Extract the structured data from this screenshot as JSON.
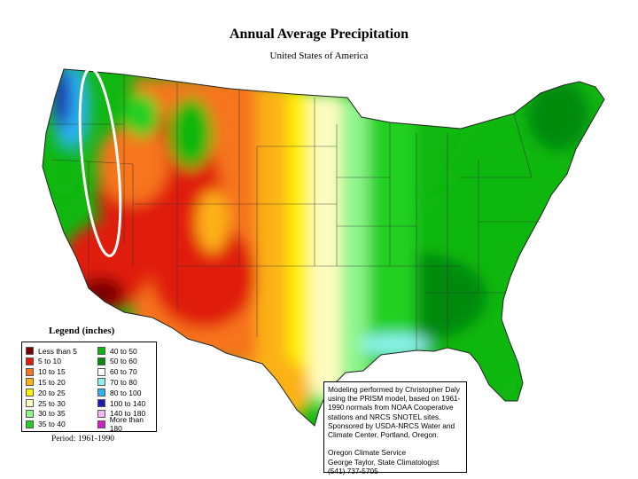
{
  "title": "Annual Average Precipitation",
  "subtitle": "United States of America",
  "legend": {
    "title": "Legend (inches)",
    "items": [
      {
        "label": "Less than 5",
        "color": "#7a0000"
      },
      {
        "label": "5 to 10",
        "color": "#e01b0c"
      },
      {
        "label": "10 to 15",
        "color": "#f7751c"
      },
      {
        "label": "15 to 20",
        "color": "#fcb214"
      },
      {
        "label": "20 to 25",
        "color": "#fff200"
      },
      {
        "label": "25 to 30",
        "color": "#fdfcc0"
      },
      {
        "label": "30 to 35",
        "color": "#8ef58c"
      },
      {
        "label": "35 to 40",
        "color": "#22d022"
      },
      {
        "label": "40 to 50",
        "color": "#11b711"
      },
      {
        "label": "50 to 60",
        "color": "#068a0a"
      },
      {
        "label": "60 to 70",
        "color": "#ffffff"
      },
      {
        "label": "70 to 80",
        "color": "#8ff2f0"
      },
      {
        "label": "80 to 100",
        "color": "#2cb3f2"
      },
      {
        "label": "100 to 140",
        "color": "#1a1bb5"
      },
      {
        "label": "140 to 180",
        "color": "#f6b8f3"
      },
      {
        "label": "More than 180",
        "color": "#d01fc6"
      }
    ]
  },
  "period": "Period: 1961-1990",
  "credits": "Modeling performed by Christopher Daly using the PRISM model, based on 1961-1990 normals from NOAA Cooperative stations and NRCS SNOTEL sites.  Sponsored by USDA-NRCS Water and Climate Center, Portland, Oregon.\n\nOregon Climate Service\nGeorge Taylor, State Climatologist\n(541) 737-5705"
}
